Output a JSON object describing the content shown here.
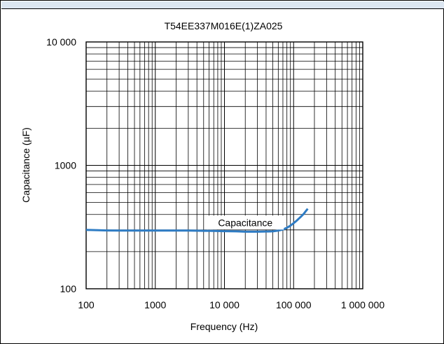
{
  "chart_data": {
    "type": "line",
    "title": "T54EE337M016E(1)ZA025",
    "xlabel": "Frequency (Hz)",
    "ylabel": "Capacitance (µF)",
    "x_scale": "log",
    "y_scale": "log",
    "xlim": [
      100,
      1000000
    ],
    "ylim": [
      100,
      10000
    ],
    "x_ticks": [
      {
        "value": 100,
        "label": "100"
      },
      {
        "value": 1000,
        "label": "1000"
      },
      {
        "value": 10000,
        "label": "10 000"
      },
      {
        "value": 100000,
        "label": "100 000"
      },
      {
        "value": 1000000,
        "label": "1 000 000"
      }
    ],
    "y_ticks": [
      {
        "value": 100,
        "label": "100"
      },
      {
        "value": 1000,
        "label": "1000"
      },
      {
        "value": 10000,
        "label": "10 000"
      }
    ],
    "grid": true,
    "legend": "none",
    "annotations": [
      {
        "text": "Capacitance",
        "x": 20000,
        "y": 335
      }
    ],
    "series": [
      {
        "name": "Capacitance",
        "color": "#2e7cc4",
        "x": [
          100,
          150,
          200,
          300,
          500,
          700,
          1000,
          1500,
          2000,
          3000,
          5000,
          7000,
          10000,
          15000,
          20000,
          30000,
          40000,
          50000,
          60000,
          70000,
          80000,
          90000,
          100000,
          110000,
          120000,
          130000,
          140000,
          150000,
          160000
        ],
        "y": [
          300,
          298,
          297,
          296,
          296,
          296,
          296,
          296,
          296,
          296,
          295,
          294,
          293,
          292,
          290,
          290,
          291,
          292,
          296,
          302,
          312,
          325,
          340,
          355,
          372,
          388,
          405,
          425,
          445
        ]
      }
    ]
  }
}
